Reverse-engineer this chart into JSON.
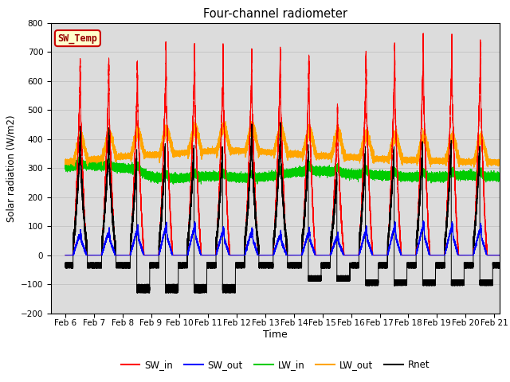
{
  "title": "Four-channel radiometer",
  "xlabel": "Time",
  "ylabel": "Solar radiation (W/m2)",
  "ylim": [
    -200,
    800
  ],
  "yticks": [
    -200,
    -100,
    0,
    100,
    200,
    300,
    400,
    500,
    600,
    700,
    800
  ],
  "xlim_days": [
    5.5,
    21.2
  ],
  "x_tick_labels": [
    "Feb 6",
    "Feb 7",
    "Feb 8",
    "Feb 9",
    "Feb 10",
    "Feb 11",
    "Feb 12",
    "Feb 13",
    "Feb 14",
    "Feb 15",
    "Feb 16",
    "Feb 17",
    "Feb 18",
    "Feb 19",
    "Feb 20",
    "Feb 21"
  ],
  "x_tick_positions": [
    6,
    7,
    8,
    9,
    10,
    11,
    12,
    13,
    14,
    15,
    16,
    17,
    18,
    19,
    20,
    21
  ],
  "colors": {
    "SW_in": "#ff0000",
    "SW_out": "#0000ff",
    "LW_in": "#00cc00",
    "LW_out": "#ffa500",
    "Rnet": "#000000"
  },
  "bg_color": "#dcdcdc",
  "annotation_text": "SW_Temp",
  "annotation_bg": "#ffffcc",
  "annotation_border": "#cc0000",
  "annotation_text_color": "#990000"
}
